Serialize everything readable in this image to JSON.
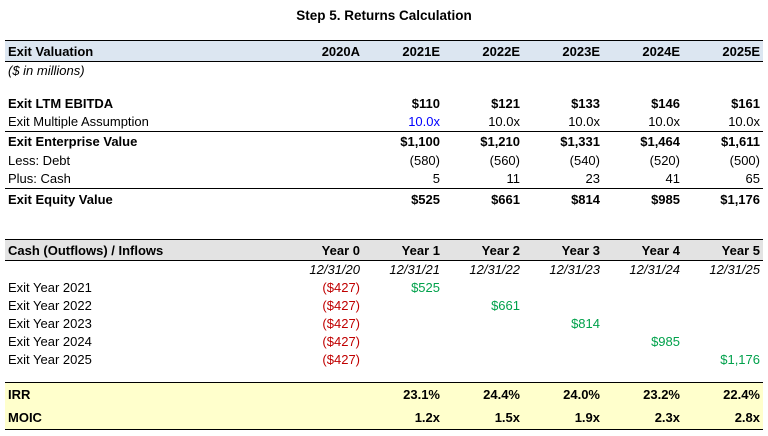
{
  "title": "Step 5. Returns Calculation",
  "colors": {
    "header_blue_bg": "#DCE6F1",
    "header_gray_bg": "#E3E3E3",
    "returns_yellow_bg": "#FFFFCC",
    "input_blue": "#0000FF",
    "negative_red": "#C00000",
    "positive_green": "#00A14B"
  },
  "exit_valuation": {
    "header": "Exit Valuation",
    "subtitle": "($ in millions)",
    "columns": [
      "2020A",
      "2021E",
      "2022E",
      "2023E",
      "2024E",
      "2025E"
    ],
    "rows": [
      {
        "label": "Exit LTM EBITDA",
        "values": [
          "",
          "$110",
          "$121",
          "$133",
          "$146",
          "$161"
        ]
      },
      {
        "label": "Exit Multiple Assumption",
        "values": [
          "",
          "10.0x",
          "10.0x",
          "10.0x",
          "10.0x",
          "10.0x"
        ]
      },
      {
        "label": "Exit Enterprise Value",
        "values": [
          "",
          "$1,100",
          "$1,210",
          "$1,331",
          "$1,464",
          "$1,611"
        ]
      },
      {
        "label": "Less: Debt",
        "values": [
          "",
          "(580)",
          "(560)",
          "(540)",
          "(520)",
          "(500)"
        ]
      },
      {
        "label": "Plus: Cash",
        "values": [
          "",
          "5",
          "11",
          "23",
          "41",
          "65"
        ]
      },
      {
        "label": "Exit Equity Value",
        "values": [
          "",
          "$525",
          "$661",
          "$814",
          "$985",
          "$1,176"
        ]
      }
    ]
  },
  "cash_flows": {
    "header": "Cash (Outflows) / Inflows",
    "columns": [
      "Year 0",
      "Year 1",
      "Year 2",
      "Year 3",
      "Year 4",
      "Year 5"
    ],
    "dates": [
      "12/31/20",
      "12/31/21",
      "12/31/22",
      "12/31/23",
      "12/31/24",
      "12/31/25"
    ],
    "rows": [
      {
        "label": "Exit Year 2021",
        "values": [
          "($427)",
          "$525",
          "",
          "",
          "",
          ""
        ]
      },
      {
        "label": "Exit Year 2022",
        "values": [
          "($427)",
          "",
          "$661",
          "",
          "",
          ""
        ]
      },
      {
        "label": "Exit Year 2023",
        "values": [
          "($427)",
          "",
          "",
          "$814",
          "",
          ""
        ]
      },
      {
        "label": "Exit Year 2024",
        "values": [
          "($427)",
          "",
          "",
          "",
          "$985",
          ""
        ]
      },
      {
        "label": "Exit Year 2025",
        "values": [
          "($427)",
          "",
          "",
          "",
          "",
          "$1,176"
        ]
      }
    ]
  },
  "returns": {
    "rows": [
      {
        "label": "IRR",
        "values": [
          "",
          "23.1%",
          "24.4%",
          "24.0%",
          "23.2%",
          "22.4%"
        ]
      },
      {
        "label": "MOIC",
        "values": [
          "",
          "1.2x",
          "1.5x",
          "1.9x",
          "2.3x",
          "2.8x"
        ]
      }
    ]
  }
}
